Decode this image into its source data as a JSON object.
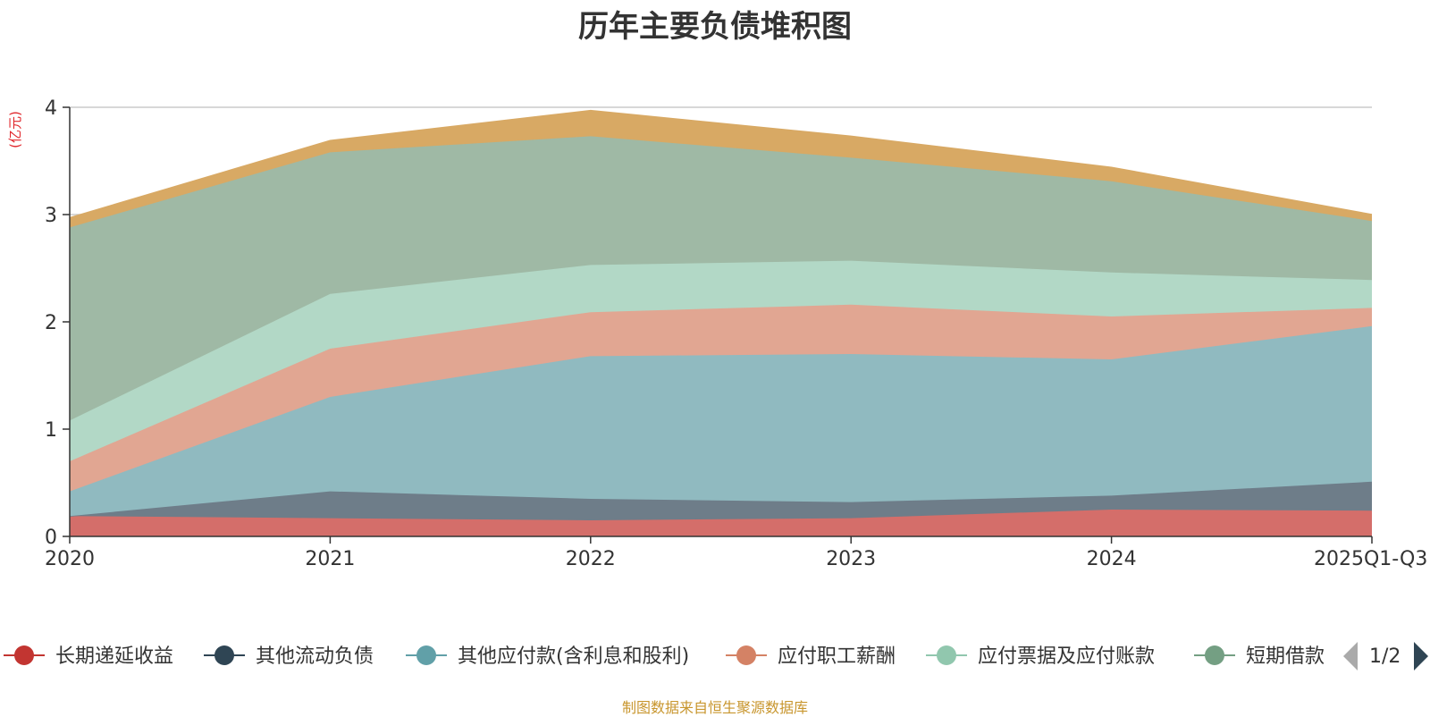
{
  "chart_data": {
    "type": "area",
    "title": "历年主要负债堆积图",
    "ylabel": "(亿元)",
    "xlabel": "",
    "categories": [
      "2020",
      "2021",
      "2022",
      "2023",
      "2024",
      "2025Q1-Q3"
    ],
    "ylim": [
      0,
      4
    ],
    "yticks": [
      "0",
      "1",
      "2",
      "3",
      "4"
    ],
    "grid": true,
    "stacked": true,
    "series": [
      {
        "name": "长期递延收益",
        "color": "#c23531",
        "fill": "#d46e6a",
        "values": [
          0.19,
          0.17,
          0.15,
          0.17,
          0.25,
          0.24
        ]
      },
      {
        "name": "其他流动负债",
        "color": "#2f4554",
        "fill": "#6e7d89",
        "values": [
          0.0,
          0.25,
          0.2,
          0.15,
          0.13,
          0.27
        ]
      },
      {
        "name": "其他应付款(含利息和股利)",
        "color": "#61a0a8",
        "fill": "#90bac0",
        "values": [
          0.23,
          0.88,
          1.33,
          1.38,
          1.27,
          1.45
        ]
      },
      {
        "name": "应付职工薪酬",
        "color": "#d48265",
        "fill": "#e1a692",
        "values": [
          0.28,
          0.45,
          0.41,
          0.46,
          0.4,
          0.17
        ]
      },
      {
        "name": "应付票据及应付账款",
        "color": "#91c7ae",
        "fill": "#b2d8c6",
        "values": [
          0.38,
          0.51,
          0.44,
          0.41,
          0.41,
          0.26
        ]
      },
      {
        "name": "短期借款",
        "color": "#749f83",
        "fill": "#9fb9a5",
        "values": [
          1.8,
          1.32,
          1.2,
          0.96,
          0.85,
          0.55
        ]
      },
      {
        "name": "",
        "color": "#ca8622",
        "fill": "#d8a964",
        "values": [
          0.09,
          0.11,
          0.24,
          0.2,
          0.13,
          0.06
        ]
      }
    ],
    "legend": {
      "position": "bottom",
      "items": [
        "长期递延收益",
        "其他流动负债",
        "其他应付款(含利息和股利)",
        "应付职工薪酬",
        "应付票据及应付账款",
        "短期借款"
      ],
      "page": "1/2"
    }
  },
  "source_note": "制图数据来自恒生聚源数据库"
}
